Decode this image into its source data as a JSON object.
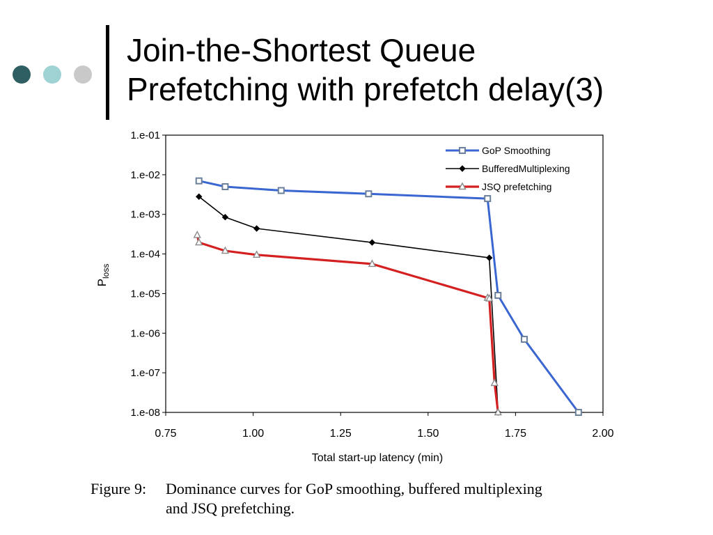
{
  "slide": {
    "title_line1": "Join-the-Shortest Queue",
    "title_line2": "Prefetching with prefetch delay(3)",
    "bullet_colors": [
      "#2f5f63",
      "#9fd3d3",
      "#c9c9c9"
    ],
    "caption_label": "Figure 9:",
    "caption_line1": "Dominance curves for GoP smoothing, buffered multiplexing",
    "caption_line2": "and JSQ prefetching."
  },
  "chart_data": {
    "type": "line",
    "title": "",
    "xlabel": "Total start-up latency (min)",
    "ylabel": "P",
    "ylabel_sub": "loss",
    "xlim": [
      0.75,
      2.0
    ],
    "ylim_log10": [
      -8,
      -1
    ],
    "y_scale": "log",
    "grid": false,
    "legend_position": "top-right",
    "x_ticks": [
      0.75,
      1.0,
      1.25,
      1.5,
      1.75,
      2.0
    ],
    "x_tick_labels": [
      "0.75",
      "1.00",
      "1.25",
      "1.50",
      "1.75",
      "2.00"
    ],
    "y_ticks_log10": [
      -1,
      -2,
      -3,
      -4,
      -5,
      -6,
      -7,
      -8
    ],
    "y_tick_labels": [
      "1.e-01",
      "1.e-02",
      "1.e-03",
      "1.e-04",
      "1.e-05",
      "1.e-06",
      "1.e-07",
      "1.e-08"
    ],
    "series": [
      {
        "name": "GoP Smoothing",
        "color": "#3a66d1",
        "marker": "square",
        "x": [
          0.845,
          0.92,
          1.08,
          1.33,
          1.67,
          1.7,
          1.775,
          1.93
        ],
        "y": [
          0.007,
          0.005,
          0.004,
          0.0033,
          0.0025,
          9e-06,
          7e-07,
          1e-08
        ]
      },
      {
        "name": "BufferedMultiplexing",
        "color": "#000000",
        "marker": "diamond",
        "x": [
          0.845,
          0.92,
          1.01,
          1.34,
          1.675,
          1.7
        ],
        "y": [
          0.0028,
          0.00085,
          0.00044,
          0.000195,
          8e-05,
          1e-08
        ]
      },
      {
        "name": "JSQ prefetching",
        "color": "#d42020",
        "marker": "triangle",
        "x": [
          0.84,
          0.845,
          0.92,
          1.01,
          1.34,
          1.67,
          1.675,
          1.69,
          1.7
        ],
        "y": [
          0.0003,
          0.000195,
          0.00012,
          9.5e-05,
          5.6e-05,
          7.8e-06,
          7.5e-06,
          5.5e-08,
          1e-08
        ]
      }
    ]
  }
}
